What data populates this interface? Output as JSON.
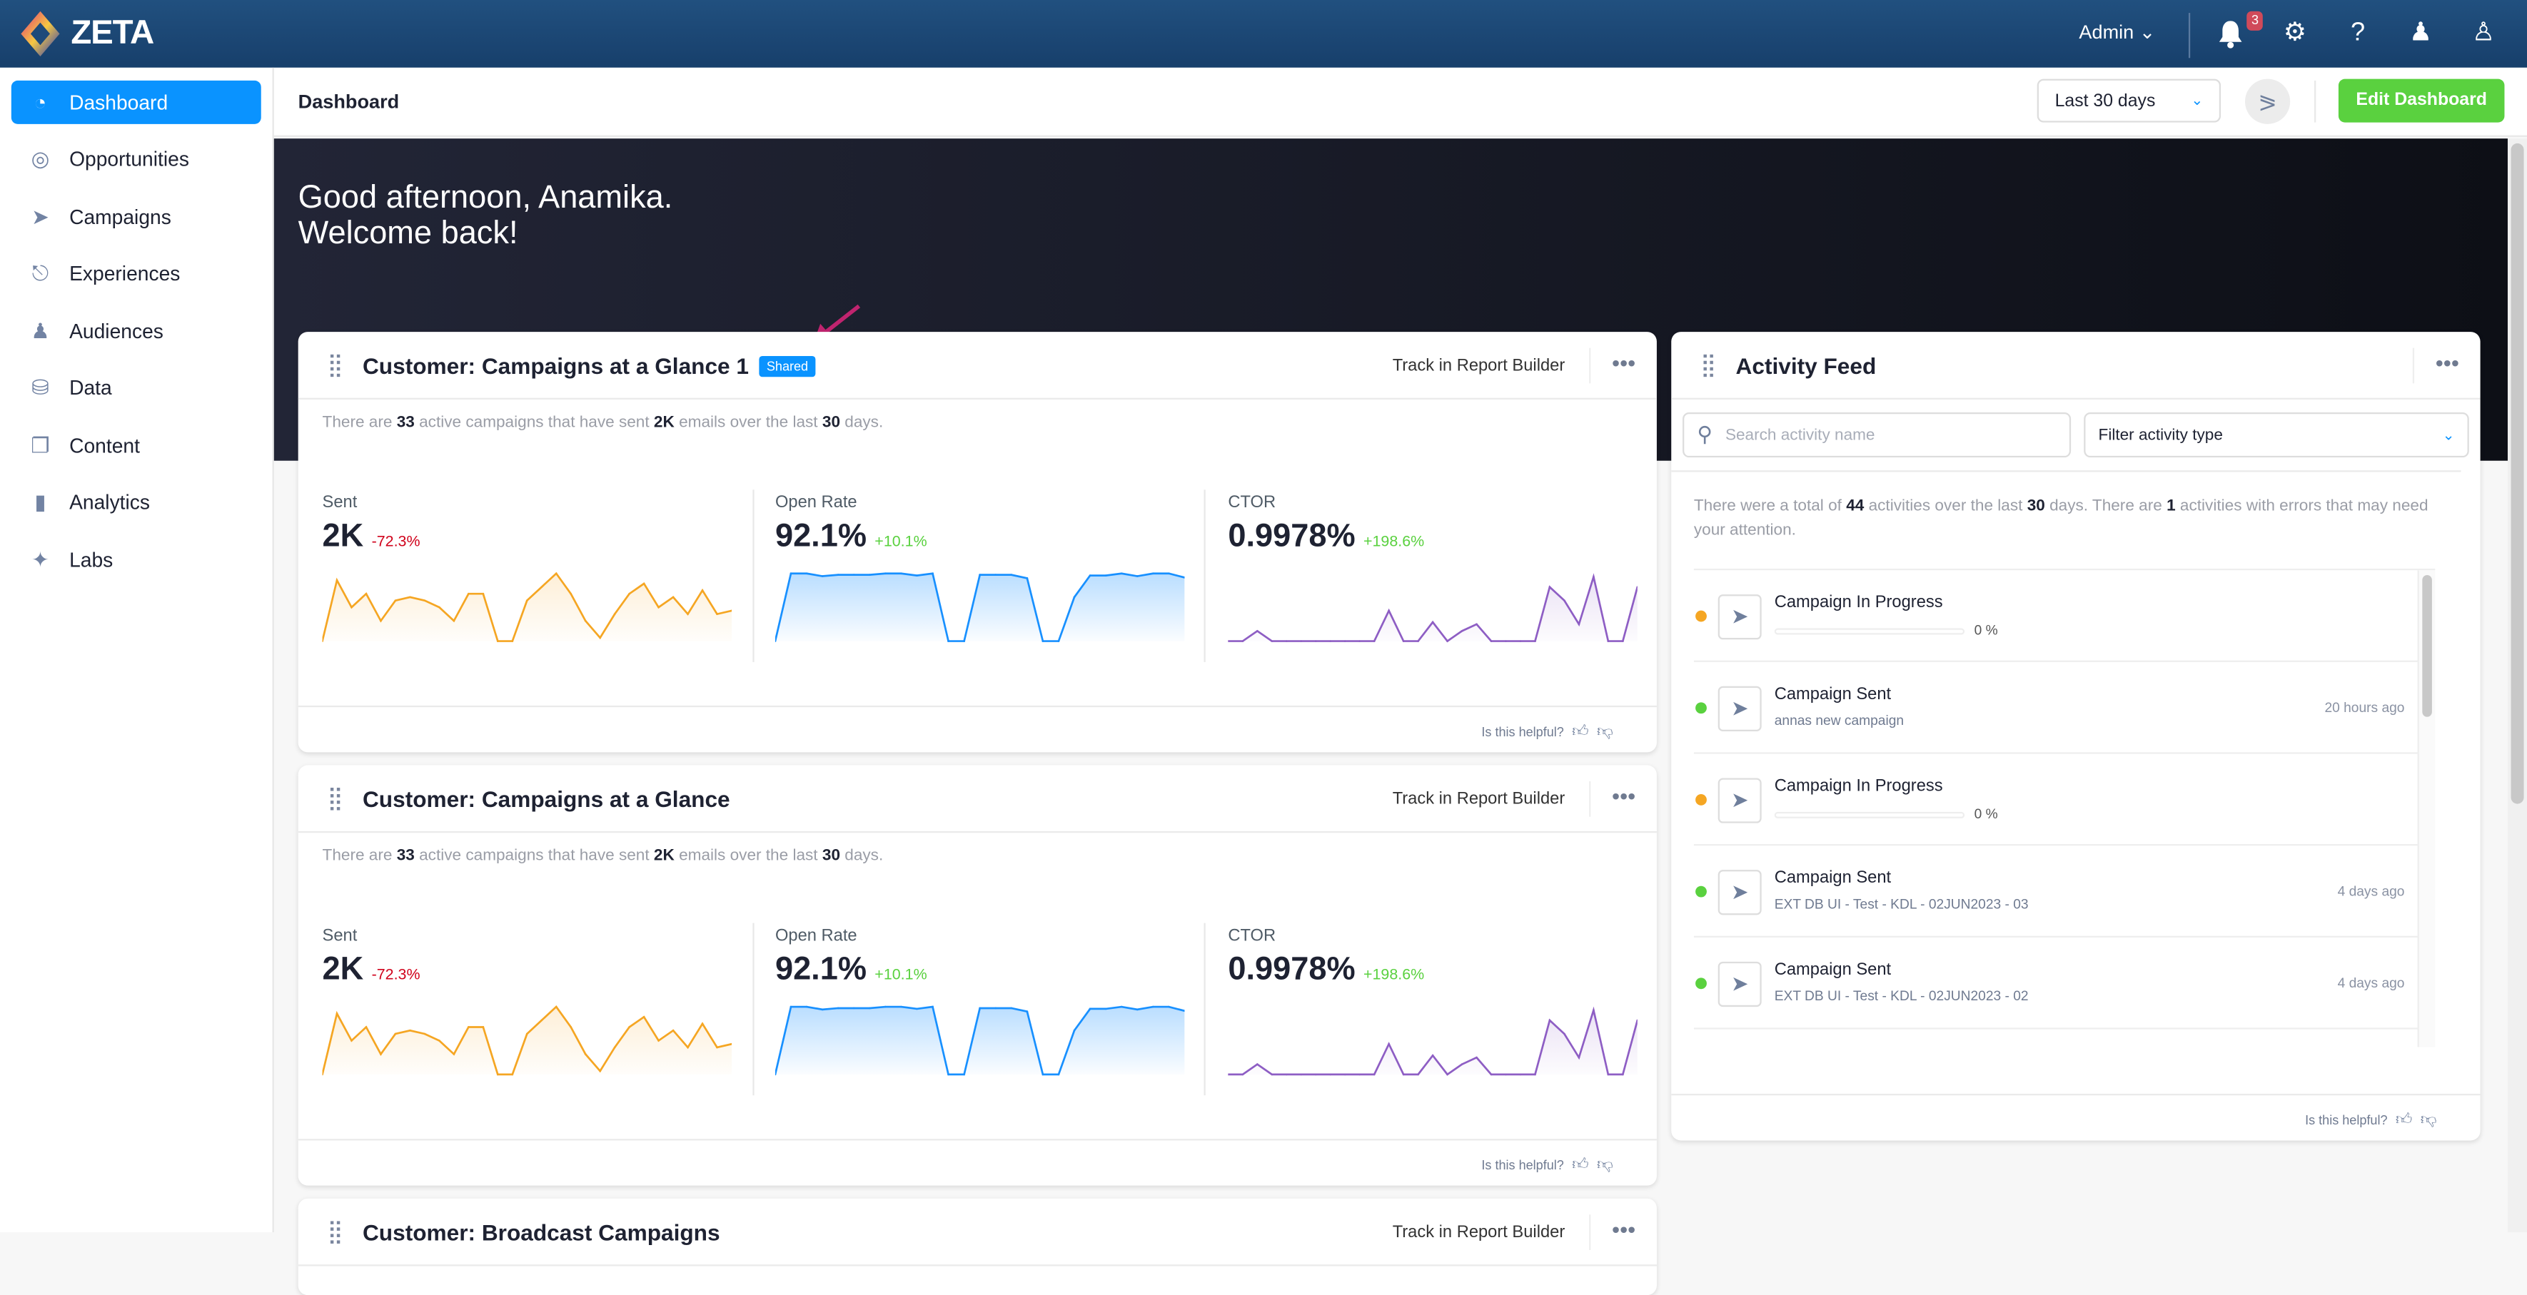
{
  "topbar": {
    "brand": "ZETA",
    "role": "Admin",
    "notifications_count": "3",
    "icons": [
      "bell-icon",
      "gear-icon",
      "help-icon",
      "admin-user-icon",
      "user-icon"
    ]
  },
  "sidebar": {
    "items": [
      {
        "label": "Dashboard",
        "icon": "speedometer-icon",
        "active": true
      },
      {
        "label": "Opportunities",
        "icon": "target-icon"
      },
      {
        "label": "Campaigns",
        "icon": "paper-plane-icon"
      },
      {
        "label": "Experiences",
        "icon": "hierarchy-icon"
      },
      {
        "label": "Audiences",
        "icon": "users-icon"
      },
      {
        "label": "Data",
        "icon": "database-icon"
      },
      {
        "label": "Content",
        "icon": "files-icon"
      },
      {
        "label": "Analytics",
        "icon": "bar-chart-icon"
      },
      {
        "label": "Labs",
        "icon": "sparkles-icon"
      }
    ]
  },
  "header": {
    "title": "Dashboard",
    "date_range": "Last 30 days",
    "edit_label": "Edit Dashboard"
  },
  "hero": {
    "line1": "Good afternoon, Anamika.",
    "line2": "Welcome back!"
  },
  "colors": {
    "accent": "#0a93ff",
    "edit": "#5ad13f",
    "sent": "#f5a623",
    "open_rate": "#1890ff",
    "ctor": "#8e5ec4",
    "negative": "#d0021b",
    "positive": "#5ad13f",
    "annotation_arrow": "#c0246f"
  },
  "cards": [
    {
      "title": "Customer: Campaigns at a Glance 1",
      "badge": "Shared",
      "track": "Track in Report Builder",
      "summary": {
        "p1": "There are ",
        "n1": "33",
        "p2": " active campaigns that have sent ",
        "n2": "2K",
        "p3": " emails over the last ",
        "n3": "30",
        "p4": " days."
      },
      "metrics": [
        {
          "label": "Sent",
          "value": "2K",
          "change": "-72.3%"
        },
        {
          "label": "Open Rate",
          "value": "92.1%",
          "change": "+10.1%"
        },
        {
          "label": "CTOR",
          "value": "0.9978%",
          "change": "+198.6%"
        }
      ],
      "helpful": "Is this helpful?"
    },
    {
      "title": "Customer: Campaigns at a Glance",
      "track": "Track in Report Builder",
      "summary": {
        "p1": "There are ",
        "n1": "33",
        "p2": " active campaigns that have sent ",
        "n2": "2K",
        "p3": " emails over the last ",
        "n3": "30",
        "p4": " days."
      },
      "metrics": [
        {
          "label": "Sent",
          "value": "2K",
          "change": "-72.3%"
        },
        {
          "label": "Open Rate",
          "value": "92.1%",
          "change": "+10.1%"
        },
        {
          "label": "CTOR",
          "value": "0.9978%",
          "change": "+198.6%"
        }
      ],
      "helpful": "Is this helpful?"
    },
    {
      "title": "Customer: Broadcast Campaigns",
      "track": "Track in Report Builder"
    }
  ],
  "sparklines": {
    "sent": [
      0,
      9,
      5,
      7,
      3,
      6,
      6.5,
      6,
      5,
      3,
      7,
      7,
      0,
      0,
      6,
      8,
      10,
      7,
      3,
      0.5,
      4,
      7,
      8.5,
      5,
      6.5,
      4,
      7.5,
      4,
      4.5
    ],
    "open_rate": [
      0,
      10,
      10,
      9.6,
      9.8,
      9.8,
      9.8,
      10,
      10,
      9.7,
      10,
      0,
      0,
      9.8,
      9.8,
      9.8,
      9.3,
      0,
      0,
      6.5,
      9.7,
      9.7,
      10,
      9.6,
      10,
      10,
      9.4
    ],
    "ctor": [
      0,
      0,
      1.5,
      0,
      0,
      0,
      0,
      0,
      0,
      0,
      0,
      4.5,
      0,
      0,
      2.8,
      0,
      1.5,
      2.5,
      0,
      0,
      0,
      0,
      8,
      6,
      2.5,
      9.5,
      0,
      0,
      8
    ]
  },
  "activity": {
    "title": "Activity Feed",
    "search_placeholder": "Search activity name",
    "filter": "Filter activity type",
    "summary": {
      "p1": "There were a total of ",
      "n1": "44",
      "p2": " activities over the last ",
      "n2": "30",
      "p3": " days. There are ",
      "n3": "1",
      "p4": " activities with errors that may need your attention."
    },
    "items": [
      {
        "title": "Campaign In Progress",
        "progress": 0,
        "progress_label": "0 %",
        "status": "#f5a623"
      },
      {
        "title": "Campaign Sent",
        "sub": "annas new campaign",
        "time": "20 hours ago",
        "status": "#5ad13f"
      },
      {
        "title": "Campaign In Progress",
        "progress": 0,
        "progress_label": "0 %",
        "status": "#f5a623"
      },
      {
        "title": "Campaign Sent",
        "sub": "EXT DB UI - Test - KDL - 02JUN2023 - 03",
        "time": "4 days ago",
        "status": "#5ad13f"
      },
      {
        "title": "Campaign Sent",
        "sub": "EXT DB UI - Test - KDL - 02JUN2023 - 02",
        "time": "4 days ago",
        "status": "#5ad13f"
      }
    ],
    "helpful": "Is this helpful?"
  }
}
